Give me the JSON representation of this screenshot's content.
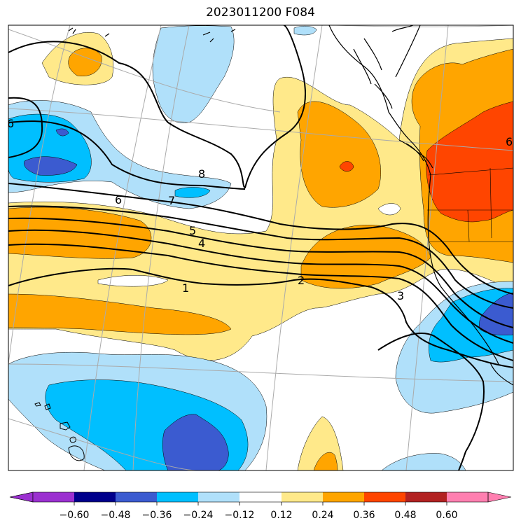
{
  "title": "2023011200 F084",
  "colors": {
    "neg_over": "#9b30d0",
    "neg_060": "#00008b",
    "neg_048": "#3b5bd0",
    "neg_036": "#00bfff",
    "neg_024": "#b0e0fa",
    "neutral": "#ffffff",
    "pos_012": "#ffe98a",
    "pos_024": "#ffa500",
    "pos_036": "#ff4500",
    "pos_048": "#b22222",
    "pos_over": "#ff7fb0"
  },
  "colorbar": {
    "ticks": [
      "−0.60",
      "−0.48",
      "−0.36",
      "−0.24",
      "−0.12",
      "0.12",
      "0.24",
      "0.36",
      "0.48",
      "0.60"
    ]
  },
  "contours": {
    "labels": [
      "6",
      "8",
      "7",
      "6",
      "5",
      "4",
      "1",
      "2",
      "3",
      "6"
    ]
  }
}
